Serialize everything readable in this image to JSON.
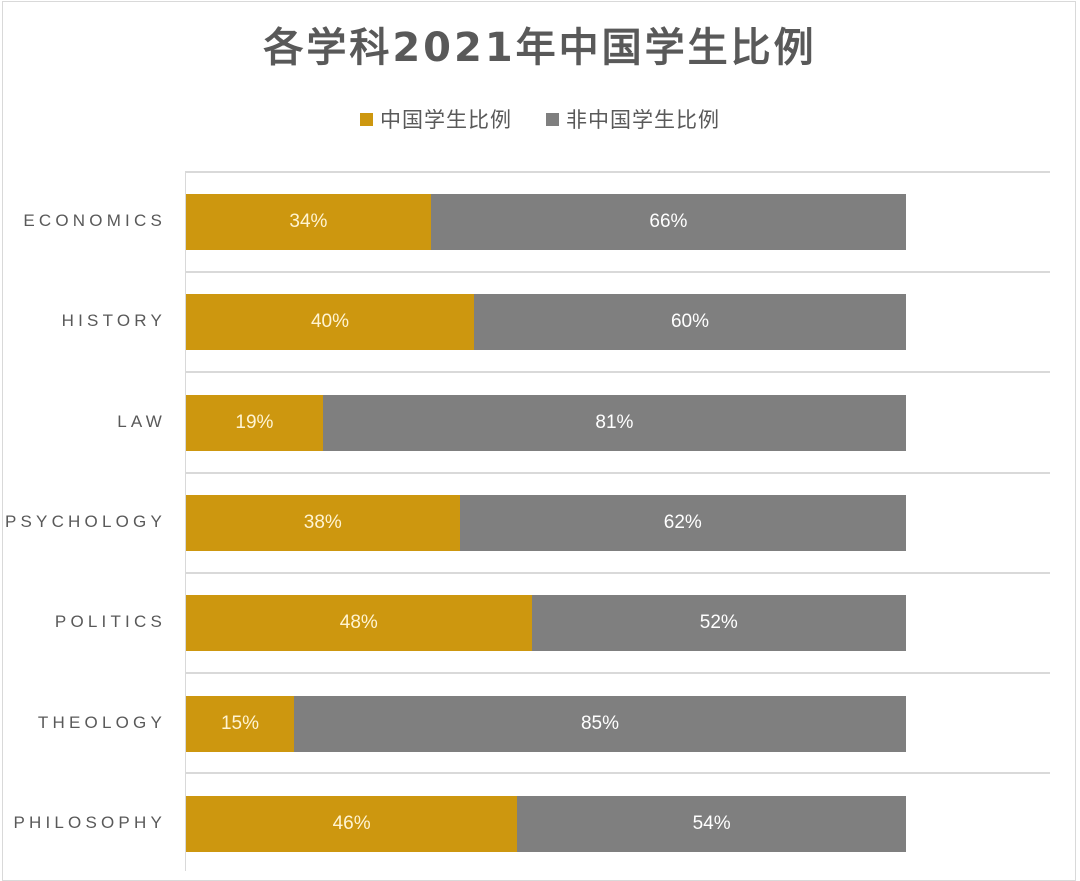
{
  "title": "各学科2021年中国学生比例",
  "legend": [
    {
      "label": "中国学生比例",
      "color": "#cd970f"
    },
    {
      "label": "非中国学生比例",
      "color": "#7f7f7f"
    }
  ],
  "rows": [
    {
      "category": "ECONOMICS",
      "cn": "34%",
      "non": "66%"
    },
    {
      "category": "HISTORY",
      "cn": "40%",
      "non": "60%"
    },
    {
      "category": "LAW",
      "cn": "19%",
      "non": "81%"
    },
    {
      "category": "PSYCHOLOGY",
      "cn": "38%",
      "non": "62%"
    },
    {
      "category": "POLITICS",
      "cn": "48%",
      "non": "52%"
    },
    {
      "category": "THEOLOGY",
      "cn": "15%",
      "non": "85%"
    },
    {
      "category": "PHILOSOPHY",
      "cn": "46%",
      "non": "54%"
    }
  ],
  "chart_data": {
    "type": "bar",
    "orientation": "horizontal",
    "stacked": "100%",
    "title": "各学科2021年中国学生比例",
    "categories": [
      "ECONOMICS",
      "HISTORY",
      "LAW",
      "PSYCHOLOGY",
      "POLITICS",
      "THEOLOGY",
      "PHILOSOPHY"
    ],
    "series": [
      {
        "name": "中国学生比例",
        "color": "#cd970f",
        "values": [
          34,
          40,
          19,
          38,
          48,
          15,
          46
        ]
      },
      {
        "name": "非中国学生比例",
        "color": "#7f7f7f",
        "values": [
          66,
          60,
          81,
          62,
          52,
          85,
          54
        ]
      }
    ],
    "xlabel": "",
    "ylabel": "",
    "xlim": [
      0,
      100
    ],
    "data_labels": true,
    "legend_position": "top",
    "grid": "horizontal category separators"
  }
}
